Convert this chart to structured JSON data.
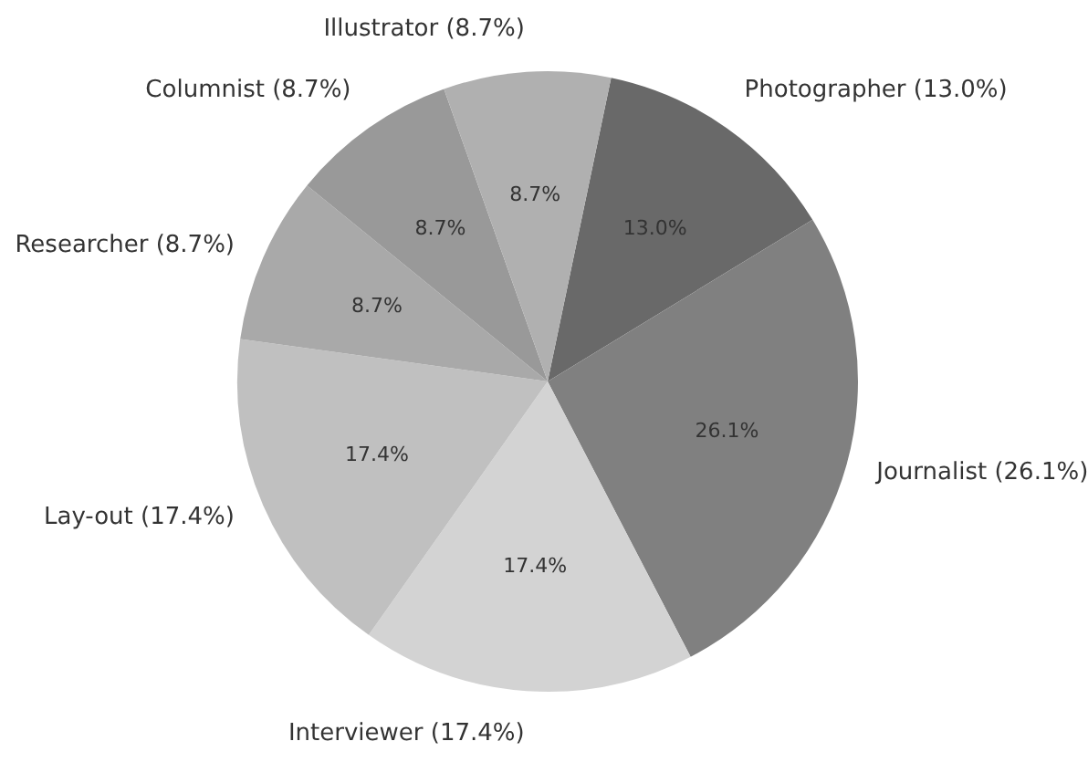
{
  "chart_data": {
    "type": "pie",
    "categories": [
      "Photographer (13.0%)",
      "Journalist (26.1%)",
      "Interviewer (17.4%)",
      "Lay-out (17.4%)",
      "Researcher (8.7%)",
      "Columnist (8.7%)",
      "Illustrator (8.7%)"
    ],
    "values": [
      13.0,
      26.1,
      17.4,
      17.4,
      8.7,
      8.7,
      8.7
    ],
    "value_labels": [
      "13.0%",
      "26.1%",
      "17.4%",
      "17.4%",
      "8.7%",
      "8.7%",
      "8.7%"
    ],
    "colors": [
      "#696969",
      "#808080",
      "#d3d3d3",
      "#c0c0c0",
      "#a9a9a9",
      "#999999",
      "#b0b0b0"
    ],
    "legend": false
  }
}
